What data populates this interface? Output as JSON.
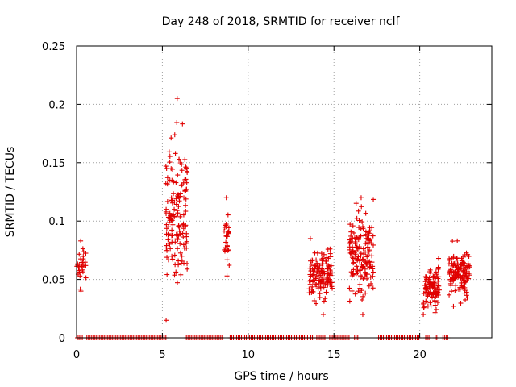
{
  "chart_data": {
    "type": "scatter",
    "title": "Day 248 of 2018, SRMTID for receiver nclf",
    "xlabel": "GPS time / hours",
    "ylabel": "SRMTID / TECUs",
    "xlim": [
      0,
      24.2
    ],
    "ylim": [
      0,
      0.25
    ],
    "grid": true,
    "marker": "plus",
    "color": "#e00000",
    "xticks": [
      0,
      5,
      10,
      15,
      20
    ],
    "xtick_labels": [
      "0",
      "5",
      "10",
      "15",
      "20"
    ],
    "yticks": [
      0,
      0.05,
      0.1,
      0.15,
      0.2,
      0.25
    ],
    "ytick_labels": [
      "0",
      "0.05",
      "0.1",
      "0.15",
      "0.2",
      "0.25"
    ],
    "clusters": [
      {
        "name": "0.0-0.5h",
        "x_range": [
          0.0,
          0.55
        ],
        "y_range": [
          0.04,
          0.083
        ],
        "n": 30
      },
      {
        "name": "5.2-6.5h",
        "x_range": [
          5.2,
          6.45
        ],
        "y_range": [
          0.015,
          0.205
        ],
        "n": 150
      },
      {
        "name": "8.6-8.9h",
        "x_range": [
          8.6,
          8.9
        ],
        "y_range": [
          0.053,
          0.12
        ],
        "n": 28
      },
      {
        "name": "13.6-14.9h",
        "x_range": [
          13.55,
          14.9
        ],
        "y_range": [
          0.02,
          0.085
        ],
        "n": 130
      },
      {
        "name": "15.9-17.3h",
        "x_range": [
          15.9,
          17.3
        ],
        "y_range": [
          0.02,
          0.12
        ],
        "n": 160
      },
      {
        "name": "20.2-21.1h",
        "x_range": [
          20.2,
          21.15
        ],
        "y_range": [
          0.02,
          0.068
        ],
        "n": 100
      },
      {
        "name": "21.7-22.9h",
        "x_range": [
          21.7,
          22.9
        ],
        "y_range": [
          0.027,
          0.083
        ],
        "n": 130
      }
    ],
    "zero_segments": [
      [
        0.05,
        0.35
      ],
      [
        0.6,
        5.25
      ],
      [
        6.4,
        8.55
      ],
      [
        8.95,
        13.5
      ],
      [
        13.65,
        13.85
      ],
      [
        14.0,
        14.5
      ],
      [
        14.75,
        15.9
      ],
      [
        16.2,
        16.45
      ],
      [
        17.6,
        20.0
      ],
      [
        20.35,
        20.6
      ],
      [
        20.9,
        21.05
      ],
      [
        21.35,
        21.65
      ]
    ]
  }
}
